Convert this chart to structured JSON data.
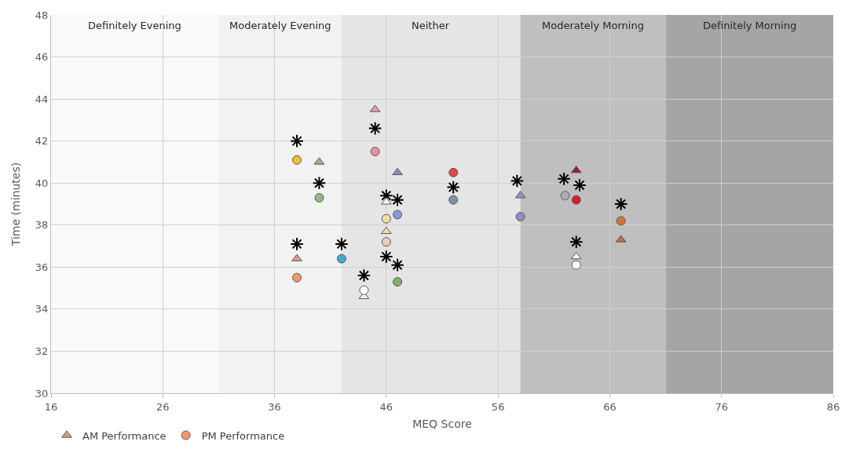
{
  "chart_data": {
    "type": "scatter",
    "xlabel": "MEQ Score",
    "ylabel": "Time (minutes)",
    "xlim": [
      16,
      86
    ],
    "xticks": [
      16,
      26,
      36,
      46,
      56,
      66,
      76,
      86
    ],
    "ylim": [
      30,
      48
    ],
    "yticks": [
      30,
      32,
      34,
      36,
      38,
      40,
      42,
      44,
      46,
      48
    ],
    "grid": true,
    "legend": "bottom left",
    "series": [
      {
        "marker": "cross",
        "color": "#000000",
        "x": [
          38,
          40,
          38,
          42,
          44,
          45,
          46,
          47,
          46,
          47,
          52,
          57.7,
          61.9,
          63.3,
          63,
          67
        ],
        "values": [
          42.0,
          40.0,
          37.1,
          37.1,
          35.6,
          42.6,
          39.4,
          39.2,
          36.5,
          36.1,
          39.8,
          40.1,
          40.2,
          39.9,
          37.2,
          39.0
        ]
      },
      {
        "name": "AM Performance",
        "marker": "triangle",
        "x": [
          38,
          40,
          45,
          47,
          46,
          46,
          44,
          58,
          63,
          63,
          67
        ],
        "values": [
          36.4,
          41.0,
          43.5,
          40.5,
          39.1,
          37.7,
          34.6,
          39.4,
          40.6,
          36.5,
          37.3
        ],
        "colors": [
          "#d99a8c",
          "#8fbc80",
          "#e0a0a8",
          "#7f93b5",
          "#f2f2f2",
          "#f0d8b0",
          "#f2f2f2",
          "#9990c8",
          "#a01c2c",
          "#f2f2f2",
          "#b0704a"
        ]
      },
      {
        "name": "PM Performance",
        "marker": "circle",
        "x": [
          38,
          38,
          40,
          42,
          45,
          47,
          46,
          46,
          47,
          44,
          52,
          52,
          58,
          63,
          62,
          63,
          67
        ],
        "values": [
          35.5,
          41.1,
          39.3,
          36.4,
          41.5,
          38.5,
          38.3,
          37.2,
          35.3,
          34.9,
          40.5,
          39.2,
          38.4,
          39.2,
          39.4,
          36.1,
          38.2
        ],
        "colors": [
          "#f09a6a",
          "#f0c030",
          "#8fbc80",
          "#40a8d8",
          "#e890a0",
          "#7f9ed8",
          "#ece0a0",
          "#f0c8c0",
          "#80b070",
          "#ffffff",
          "#e04848",
          "#8090a8",
          "#9a88c8",
          "#d81c28",
          "#a8b0b8",
          "#ffffff",
          "#c87840"
        ]
      }
    ],
    "bands": [
      {
        "axis": "x",
        "from": 16,
        "to": 31,
        "label": "Definitely Evening",
        "color": "#f9f9f9"
      },
      {
        "axis": "x",
        "from": 31,
        "to": 42,
        "label": "Moderately Evening",
        "color": "#f2f2f2"
      },
      {
        "axis": "x",
        "from": 42,
        "to": 58,
        "label": "Neither",
        "color": "#e5e5e5"
      },
      {
        "axis": "x",
        "from": 58,
        "to": 71,
        "label": "Moderately Morning",
        "color": "#bfbfbf"
      },
      {
        "axis": "x",
        "from": 71,
        "to": 86,
        "label": "Definitely Morning",
        "color": "#a5a5a5"
      }
    ]
  }
}
